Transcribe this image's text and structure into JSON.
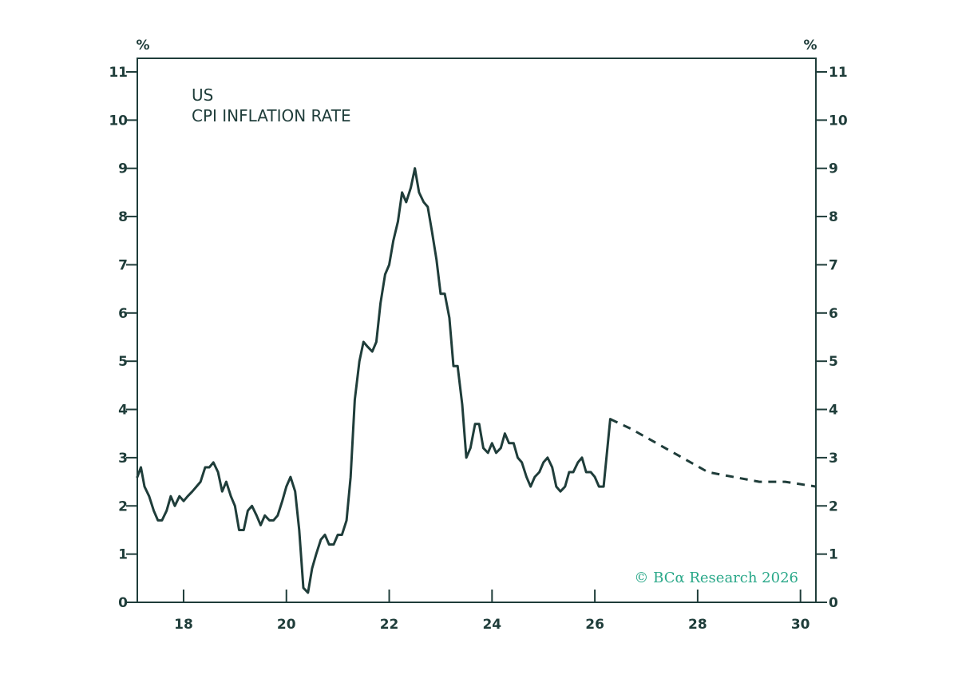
{
  "chart_data": {
    "type": "line",
    "title_lines": [
      "US",
      "CPI INFLATION RATE"
    ],
    "unit_left": "%",
    "unit_right": "%",
    "credit": "© BCα Research 2026",
    "xlim": [
      2017.1,
      2030.3
    ],
    "ylim": [
      0,
      11
    ],
    "x_ticks": [
      {
        "value": 2018,
        "label": "18"
      },
      {
        "value": 2020,
        "label": "20"
      },
      {
        "value": 2022,
        "label": "22"
      },
      {
        "value": 2024,
        "label": "24"
      },
      {
        "value": 2026,
        "label": "26"
      },
      {
        "value": 2028,
        "label": "28"
      },
      {
        "value": 2030,
        "label": "30"
      }
    ],
    "y_ticks": [
      0,
      1,
      2,
      3,
      4,
      5,
      6,
      7,
      8,
      9,
      10,
      11
    ],
    "line_color": "#1f3d3a",
    "accent_color": "#2aa889",
    "series": [
      {
        "style": "solid",
        "x": [
          2017.1,
          2017.17,
          2017.24,
          2017.33,
          2017.42,
          2017.5,
          2017.58,
          2017.67,
          2017.75,
          2017.83,
          2017.92,
          2018.0,
          2018.08,
          2018.17,
          2018.25,
          2018.33,
          2018.42,
          2018.5,
          2018.58,
          2018.67,
          2018.75,
          2018.83,
          2018.92,
          2019.0,
          2019.08,
          2019.17,
          2019.25,
          2019.33,
          2019.42,
          2019.5,
          2019.58,
          2019.67,
          2019.75,
          2019.83,
          2019.92,
          2020.0,
          2020.08,
          2020.17,
          2020.25,
          2020.33,
          2020.42,
          2020.5,
          2020.58,
          2020.67,
          2020.75,
          2020.83,
          2020.92,
          2021.0,
          2021.08,
          2021.17,
          2021.25,
          2021.33,
          2021.42,
          2021.5,
          2021.58,
          2021.67,
          2021.75,
          2021.83,
          2021.92,
          2022.0,
          2022.08,
          2022.17,
          2022.25,
          2022.33,
          2022.42,
          2022.5,
          2022.58,
          2022.67,
          2022.75,
          2022.83,
          2022.92,
          2023.0,
          2023.08,
          2023.17,
          2023.25,
          2023.33,
          2023.42,
          2023.5,
          2023.58,
          2023.67,
          2023.75,
          2023.83,
          2023.92,
          2024.0,
          2024.08,
          2024.17,
          2024.25,
          2024.33,
          2024.42,
          2024.5,
          2024.58,
          2024.67,
          2024.75,
          2024.83,
          2024.92,
          2025.0,
          2025.08,
          2025.17,
          2025.25,
          2025.33,
          2025.42,
          2025.5,
          2025.58,
          2025.67,
          2025.75,
          2025.83,
          2025.92,
          2026.0,
          2026.08,
          2026.17,
          2026.3
        ],
        "y": [
          2.6,
          2.8,
          2.4,
          2.2,
          1.9,
          1.7,
          1.7,
          1.9,
          2.2,
          2.0,
          2.2,
          2.1,
          2.2,
          2.3,
          2.4,
          2.5,
          2.8,
          2.8,
          2.9,
          2.7,
          2.3,
          2.5,
          2.2,
          2.0,
          1.5,
          1.5,
          1.9,
          2.0,
          1.8,
          1.6,
          1.8,
          1.7,
          1.7,
          1.8,
          2.1,
          2.4,
          2.6,
          2.3,
          1.5,
          0.3,
          0.2,
          0.7,
          1.0,
          1.3,
          1.4,
          1.2,
          1.2,
          1.4,
          1.4,
          1.7,
          2.6,
          4.2,
          5.0,
          5.4,
          5.3,
          5.2,
          5.4,
          6.2,
          6.8,
          7.0,
          7.5,
          7.9,
          8.5,
          8.3,
          8.6,
          9.0,
          8.5,
          8.3,
          8.2,
          7.7,
          7.1,
          6.4,
          6.4,
          5.9,
          4.9,
          4.9,
          4.1,
          3.0,
          3.2,
          3.7,
          3.7,
          3.2,
          3.1,
          3.3,
          3.1,
          3.2,
          3.5,
          3.3,
          3.3,
          3.0,
          2.9,
          2.6,
          2.4,
          2.6,
          2.7,
          2.9,
          3.0,
          2.8,
          2.4,
          2.3,
          2.4,
          2.7,
          2.7,
          2.9,
          3.0,
          2.7,
          2.7,
          2.6,
          2.4,
          2.4,
          3.8
        ]
      },
      {
        "style": "dashed",
        "x": [
          2026.3,
          2026.7,
          2027.2,
          2027.7,
          2028.2,
          2028.7,
          2029.2,
          2029.7,
          2030.3
        ],
        "y": [
          3.8,
          3.6,
          3.3,
          3.0,
          2.7,
          2.6,
          2.5,
          2.5,
          2.4
        ]
      }
    ]
  }
}
